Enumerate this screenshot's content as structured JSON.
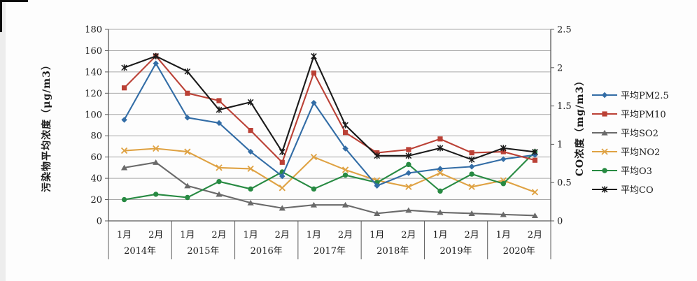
{
  "chart_data": {
    "type": "line",
    "title": "",
    "grid": true,
    "legend_position": "right",
    "x_axis": {
      "month_labels": [
        "1月",
        "2月"
      ],
      "group_labels": [
        "2014年",
        "2015年",
        "2016年",
        "2017年",
        "2018年",
        "2019年",
        "2020年"
      ]
    },
    "y_left": {
      "title": "污染物平均浓度（μg/m3）",
      "min": 0,
      "max": 180,
      "step": 20,
      "ticks": [
        "180",
        "160",
        "140",
        "120",
        "100",
        "80",
        "60",
        "40",
        "20",
        "0"
      ]
    },
    "y_right": {
      "title": "CO浓度（mg/m3）",
      "min": 0,
      "max": 2.5,
      "step": 0.5,
      "ticks": [
        "2.5",
        "2",
        "1.5",
        "1",
        "0.5",
        "0"
      ]
    },
    "series": [
      {
        "name": "平均PM2.5",
        "color": "#336da6",
        "marker": "diamond",
        "axis": "left",
        "values": [
          95,
          148,
          97,
          92,
          65,
          42,
          111,
          68,
          33,
          45,
          49,
          51,
          58,
          62
        ]
      },
      {
        "name": "平均PM10",
        "color": "#bb4136",
        "marker": "square",
        "axis": "left",
        "values": [
          125,
          155,
          120,
          113,
          85,
          55,
          139,
          83,
          64,
          67,
          77,
          64,
          65,
          57
        ]
      },
      {
        "name": "平均SO2",
        "color": "#6a6a6a",
        "marker": "triangle",
        "axis": "left",
        "values": [
          50,
          55,
          33,
          25,
          17,
          12,
          15,
          15,
          7,
          10,
          8,
          7,
          6,
          5
        ]
      },
      {
        "name": "平均NO2",
        "color": "#dfa243",
        "marker": "x",
        "axis": "left",
        "values": [
          66,
          68,
          65,
          50,
          49,
          31,
          60,
          48,
          38,
          32,
          45,
          32,
          38,
          27
        ]
      },
      {
        "name": "平均O3",
        "color": "#278a42",
        "marker": "circle",
        "axis": "left",
        "values": [
          20,
          25,
          22,
          37,
          30,
          46,
          30,
          43,
          36,
          53,
          28,
          44,
          35,
          65
        ]
      },
      {
        "name": "平均CO",
        "color": "#1a1a1a",
        "marker": "asterisk",
        "axis": "right",
        "values": [
          2.0,
          2.15,
          1.95,
          1.45,
          1.55,
          0.9,
          2.15,
          1.25,
          0.85,
          0.85,
          0.95,
          0.8,
          0.95,
          0.9
        ]
      }
    ],
    "colors": {
      "gridline": "#a8a8a8",
      "axis_line": "#5a5a5a",
      "text": "#1a1a1a"
    }
  }
}
